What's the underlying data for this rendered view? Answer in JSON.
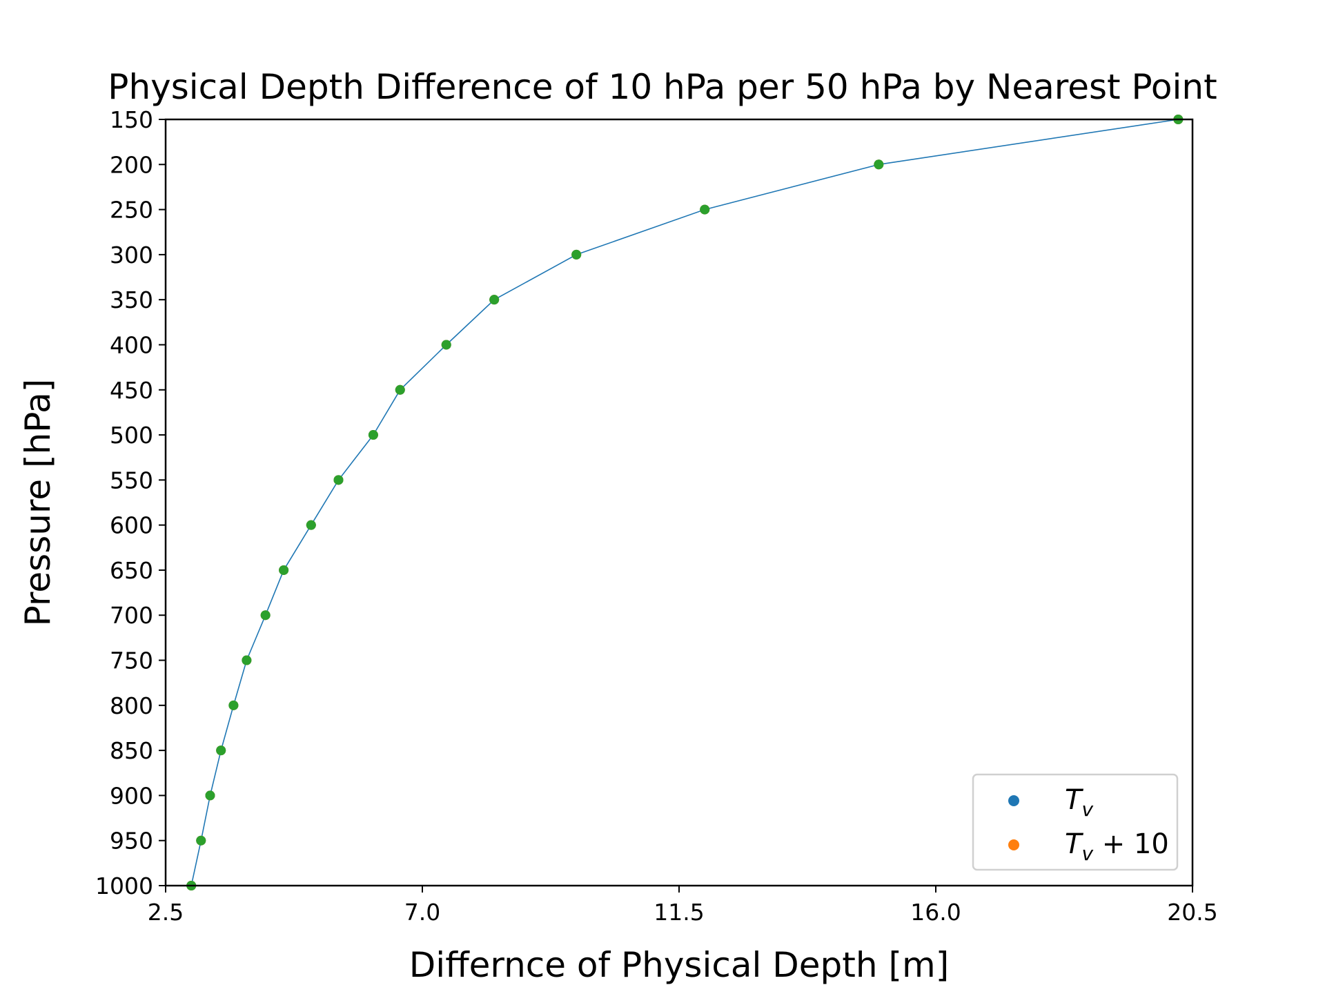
{
  "chart_data": {
    "type": "line",
    "title": "Physical Depth Difference of 10 hPa per 50 hPa by Nearest Point",
    "xlabel": "Differnce of Physical Depth [m]",
    "ylabel": "Pressure [hPa]",
    "xlim": [
      2.5,
      20.5
    ],
    "ylim": [
      1000,
      150
    ],
    "y_inverted": true,
    "xticks": [
      "2.5",
      "7.0",
      "11.5",
      "16.0",
      "20.5"
    ],
    "yticks": [
      "150",
      "200",
      "250",
      "300",
      "350",
      "400",
      "450",
      "500",
      "550",
      "600",
      "650",
      "700",
      "750",
      "800",
      "850",
      "900",
      "950",
      "1000"
    ],
    "legend_position": "lower-right",
    "series": [
      {
        "name": "T_v",
        "color": "#1f77b4",
        "line": true,
        "x": [
          2.95,
          3.12,
          3.28,
          3.47,
          3.69,
          3.92,
          4.25,
          4.57,
          5.05,
          5.53,
          6.14,
          6.61,
          7.42,
          8.26,
          9.7,
          11.95,
          15.0,
          20.25
        ],
        "y": [
          1000,
          950,
          900,
          850,
          800,
          750,
          700,
          650,
          600,
          550,
          500,
          450,
          400,
          350,
          300,
          250,
          200,
          150
        ]
      },
      {
        "name": "T_v + 10",
        "color": "#ff7f0e",
        "line": false,
        "x": [
          2.95,
          3.12,
          3.28,
          3.47,
          3.69,
          3.92,
          4.25,
          4.57,
          5.05,
          5.53,
          6.14,
          6.61,
          7.42,
          8.26,
          9.7,
          11.95,
          15.0,
          20.25
        ],
        "y": [
          1000,
          950,
          900,
          850,
          800,
          750,
          700,
          650,
          600,
          550,
          500,
          450,
          400,
          350,
          300,
          250,
          200,
          150
        ]
      }
    ],
    "overlay_marker_color": "#2ca02c",
    "legend": {
      "entries": [
        {
          "main": "T",
          "sub": "v",
          "suffix": "",
          "color": "#1f77b4"
        },
        {
          "main": "T",
          "sub": "v",
          "suffix": " + 10",
          "color": "#ff7f0e"
        }
      ]
    }
  }
}
